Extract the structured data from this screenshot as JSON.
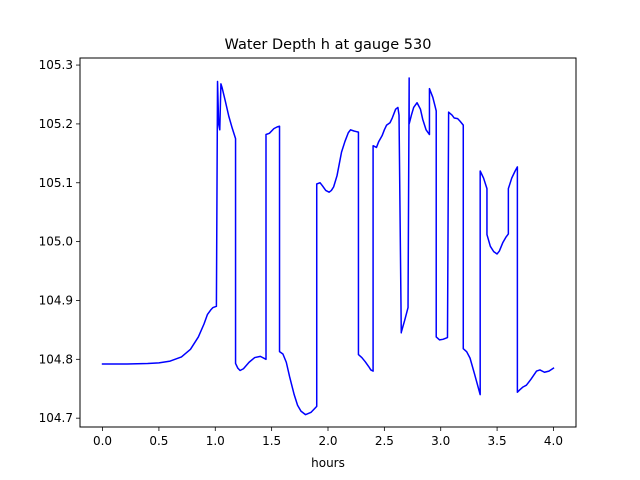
{
  "chart_data": {
    "type": "line",
    "title": "Water Depth h at gauge 530",
    "xlabel": "hours",
    "ylabel": "",
    "xlim": [
      -0.2,
      4.2
    ],
    "ylim": [
      104.685,
      105.312
    ],
    "xticks": [
      0.0,
      0.5,
      1.0,
      1.5,
      2.0,
      2.5,
      3.0,
      3.5,
      4.0
    ],
    "xtick_labels": [
      "0.0",
      "0.5",
      "1.0",
      "1.5",
      "2.0",
      "2.5",
      "3.0",
      "3.5",
      "4.0"
    ],
    "yticks": [
      104.7,
      104.8,
      104.9,
      105.0,
      105.1,
      105.2,
      105.3
    ],
    "ytick_labels": [
      "104.7",
      "104.8",
      "104.9",
      "105.0",
      "105.1",
      "105.2",
      "105.3"
    ],
    "grid": false,
    "series": [
      {
        "color": "#0000ff",
        "x": [
          0.0,
          0.2,
          0.4,
          0.5,
          0.6,
          0.7,
          0.78,
          0.85,
          0.9,
          0.93,
          0.96,
          0.98,
          1.01,
          1.02,
          1.03,
          1.04,
          1.05,
          1.06,
          1.09,
          1.12,
          1.15,
          1.18,
          1.18,
          1.2,
          1.22,
          1.25,
          1.3,
          1.35,
          1.4,
          1.45,
          1.45,
          1.48,
          1.52,
          1.55,
          1.57,
          1.57,
          1.6,
          1.63,
          1.66,
          1.7,
          1.73,
          1.76,
          1.8,
          1.85,
          1.88,
          1.9,
          1.9,
          1.93,
          1.95,
          1.98,
          2.01,
          2.03,
          2.05,
          2.08,
          2.1,
          2.12,
          2.15,
          2.18,
          2.2,
          2.23,
          2.25,
          2.27,
          2.27,
          2.3,
          2.33,
          2.36,
          2.38,
          2.4,
          2.4,
          2.43,
          2.45,
          2.48,
          2.5,
          2.52,
          2.55,
          2.57,
          2.6,
          2.62,
          2.63,
          2.65,
          2.65,
          2.68,
          2.71,
          2.71,
          2.72,
          2.72,
          2.74,
          2.76,
          2.79,
          2.82,
          2.84,
          2.87,
          2.9,
          2.9,
          2.93,
          2.95,
          2.96,
          2.96,
          2.99,
          3.02,
          3.06,
          3.06,
          3.07,
          3.1,
          3.12,
          3.15,
          3.17,
          3.2,
          3.2,
          3.23,
          3.26,
          3.3,
          3.35,
          3.35,
          3.38,
          3.41,
          3.41,
          3.44,
          3.47,
          3.5,
          3.52,
          3.55,
          3.58,
          3.6,
          3.6,
          3.63,
          3.66,
          3.68,
          3.68,
          3.7,
          3.73,
          3.76,
          3.8,
          3.85,
          3.88,
          3.92,
          3.96,
          4.0
        ],
        "y": [
          104.792,
          104.792,
          104.793,
          104.794,
          104.797,
          104.804,
          104.817,
          104.838,
          104.86,
          104.876,
          104.884,
          104.888,
          104.89,
          105.272,
          105.2,
          105.19,
          105.268,
          105.262,
          105.238,
          105.213,
          105.193,
          105.175,
          104.793,
          104.785,
          104.781,
          104.784,
          104.795,
          104.803,
          104.805,
          104.8,
          105.182,
          105.184,
          105.192,
          105.195,
          105.196,
          104.813,
          104.809,
          104.795,
          104.77,
          104.74,
          104.722,
          104.712,
          104.706,
          104.71,
          104.716,
          104.72,
          105.098,
          105.1,
          105.095,
          105.087,
          105.084,
          105.087,
          105.093,
          105.112,
          105.132,
          105.152,
          105.17,
          105.185,
          105.19,
          105.188,
          105.187,
          105.186,
          104.808,
          104.803,
          104.796,
          104.788,
          104.782,
          104.78,
          105.163,
          105.16,
          105.17,
          105.18,
          105.19,
          105.198,
          105.202,
          105.21,
          105.225,
          105.228,
          105.215,
          104.845,
          104.846,
          104.866,
          104.888,
          104.893,
          105.278,
          105.2,
          105.215,
          105.228,
          105.236,
          105.225,
          105.208,
          105.19,
          105.182,
          105.26,
          105.245,
          105.23,
          105.222,
          104.838,
          104.833,
          104.834,
          104.837,
          104.838,
          105.22,
          105.215,
          105.21,
          105.209,
          105.205,
          105.198,
          104.818,
          104.813,
          104.802,
          104.775,
          104.74,
          105.12,
          105.108,
          105.09,
          105.012,
          104.992,
          104.983,
          104.979,
          104.984,
          104.998,
          105.008,
          105.013,
          105.09,
          105.108,
          105.12,
          105.127,
          104.744,
          104.748,
          104.753,
          104.756,
          104.766,
          104.78,
          104.782,
          104.778,
          104.78,
          104.785
        ]
      }
    ]
  }
}
